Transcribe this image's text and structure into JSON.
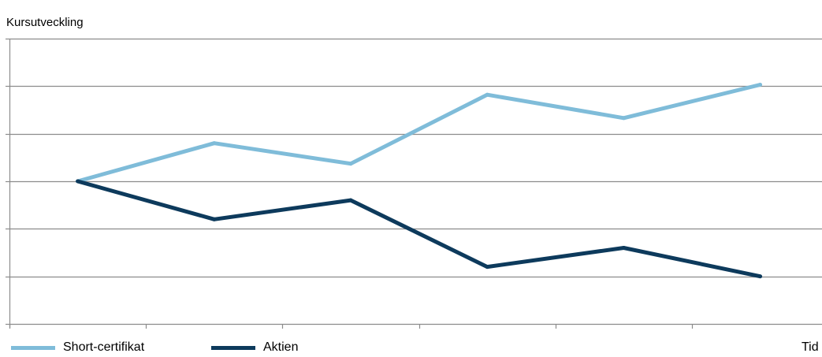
{
  "chart_data": {
    "type": "line",
    "title": "Kursutveckling",
    "xlabel": "Tid",
    "ylabel": "",
    "x": [
      1,
      2,
      3,
      4,
      5,
      6
    ],
    "ylim": [
      0,
      6
    ],
    "grid": true,
    "legend_position": "bottom-left",
    "series": [
      {
        "name": "Short-certifikat",
        "color": "#7fbcd9",
        "values": [
          3.0,
          3.8,
          3.37,
          4.82,
          4.33,
          5.03
        ]
      },
      {
        "name": "Aktien",
        "color": "#0d3a5c",
        "values": [
          3.0,
          2.2,
          2.6,
          1.2,
          1.6,
          1.0
        ]
      }
    ]
  }
}
